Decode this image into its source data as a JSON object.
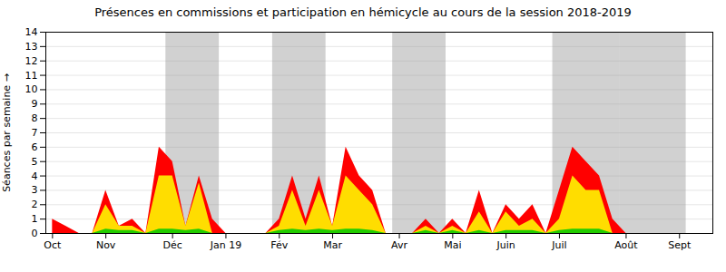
{
  "chart_data": {
    "type": "area",
    "title": "Présences en commissions et participation en hémicycle au cours de la session 2018-2019",
    "ylabel": "Séances par semaine",
    "x": [
      0,
      1,
      2,
      3,
      4,
      5,
      6,
      7,
      8,
      9,
      10,
      11,
      12,
      13,
      14,
      15,
      16,
      17,
      18,
      19,
      20,
      21,
      22,
      23,
      24,
      25,
      26,
      27,
      28,
      29,
      30,
      31,
      32,
      33,
      34,
      35,
      36,
      37,
      38,
      39,
      40,
      41,
      42,
      43,
      44,
      45,
      46,
      47,
      48,
      49
    ],
    "xlim": [
      -0.5,
      49.5
    ],
    "xticks": [
      {
        "value": 0,
        "label": "Oct"
      },
      {
        "value": 4,
        "label": "Nov"
      },
      {
        "value": 9,
        "label": "Déc"
      },
      {
        "value": 13,
        "label": "Jan 19"
      },
      {
        "value": 17,
        "label": "Fév"
      },
      {
        "value": 21,
        "label": "Mar"
      },
      {
        "value": 26,
        "label": "Avr"
      },
      {
        "value": 30,
        "label": "Mai"
      },
      {
        "value": 34,
        "label": "Juin"
      },
      {
        "value": 38,
        "label": "Juil"
      },
      {
        "value": 43,
        "label": "Août"
      },
      {
        "value": 47,
        "label": "Sept"
      }
    ],
    "ylim": [
      0,
      14
    ],
    "yticks": [
      0,
      1,
      2,
      3,
      4,
      5,
      6,
      7,
      8,
      9,
      10,
      11,
      12,
      13,
      14
    ],
    "grid": true,
    "shaded_periods": [
      [
        8.5,
        12.5
      ],
      [
        16.5,
        20.5
      ],
      [
        25.5,
        29.5
      ],
      [
        37.5,
        42.5
      ],
      [
        42.5,
        47.5
      ]
    ],
    "series": [
      {
        "color": "#ff0000",
        "values": [
          1,
          0.5,
          0,
          0,
          3,
          0.5,
          1,
          0,
          6,
          5,
          0.5,
          4,
          1,
          0,
          0,
          0,
          0,
          1,
          4,
          1,
          4,
          0.5,
          6,
          4,
          3,
          0,
          0,
          0,
          1,
          0,
          1,
          0,
          3,
          0,
          2,
          1,
          2,
          0,
          3,
          6,
          5,
          4,
          1,
          0,
          0,
          0,
          0,
          0,
          0,
          0
        ]
      },
      {
        "color": "#ffdd00",
        "values": [
          0,
          0,
          0,
          0,
          2,
          0.5,
          0.5,
          0,
          4,
          4,
          0.5,
          3.5,
          0,
          0,
          0,
          0,
          0,
          0.5,
          3,
          0.5,
          3,
          0.5,
          4,
          3,
          2,
          0,
          0,
          0,
          0.5,
          0,
          0.5,
          0,
          1.5,
          0,
          1.5,
          0.5,
          1,
          0,
          1,
          4,
          3,
          3,
          0,
          0,
          0,
          0,
          0,
          0,
          0,
          0
        ]
      },
      {
        "color": "#22cc00",
        "values": [
          0,
          0,
          0,
          0,
          0.3,
          0.2,
          0.2,
          0,
          0.3,
          0.3,
          0.2,
          0.3,
          0,
          0,
          0,
          0,
          0,
          0.2,
          0.3,
          0.2,
          0.3,
          0.2,
          0.3,
          0.3,
          0.2,
          0,
          0,
          0,
          0.2,
          0,
          0.2,
          0,
          0.2,
          0,
          0.2,
          0.2,
          0.2,
          0,
          0.2,
          0.3,
          0.3,
          0.3,
          0,
          0,
          0,
          0,
          0,
          0,
          0,
          0
        ]
      }
    ]
  }
}
